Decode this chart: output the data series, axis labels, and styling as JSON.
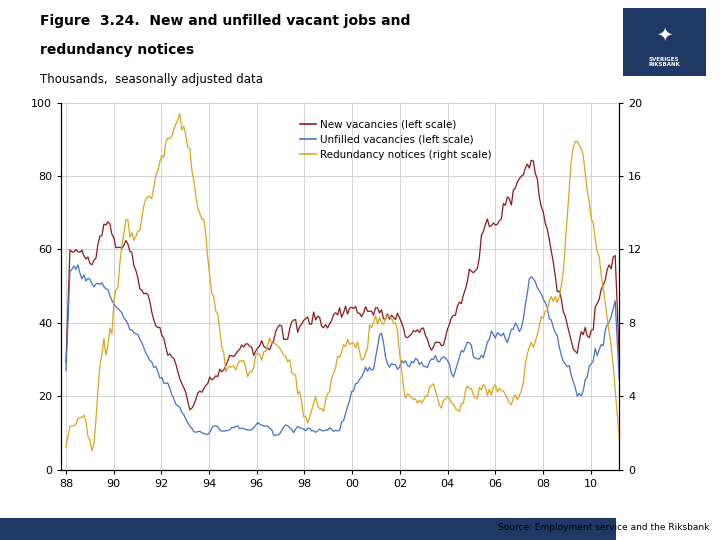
{
  "title_line1": "Figure  3.24.  New and unfilled vacant jobs and",
  "title_line2": "redundancy notices",
  "subtitle": "Thousands,  seasonally adjusted data",
  "source": "Source: Employment service and the Riksbank",
  "legend": [
    {
      "label": "New vacancies (left scale)",
      "color": "#8B1A1A"
    },
    {
      "label": "Unfilled vacancies (left scale)",
      "color": "#4472C4"
    },
    {
      "label": "Redundancy notices (right scale)",
      "color": "#DAA520"
    }
  ],
  "left_ylim": [
    0,
    100
  ],
  "right_ylim": [
    0,
    20
  ],
  "left_yticks": [
    0,
    20,
    40,
    60,
    80,
    100
  ],
  "right_yticks": [
    0,
    4,
    8,
    12,
    16,
    20
  ],
  "xticks": [
    1988,
    1990,
    1992,
    1994,
    1996,
    1998,
    2000,
    2002,
    2004,
    2006,
    2008,
    2010
  ],
  "xticklabels": [
    "88",
    "90",
    "92",
    "94",
    "96",
    "98",
    "00",
    "02",
    "04",
    "06",
    "08",
    "10"
  ],
  "xlim": [
    1987.8,
    2011.2
  ],
  "grid_color": "#CCCCCC",
  "background_color": "#FFFFFF",
  "logo_color": "#1F3864",
  "bottom_bar_color": "#1F3864"
}
